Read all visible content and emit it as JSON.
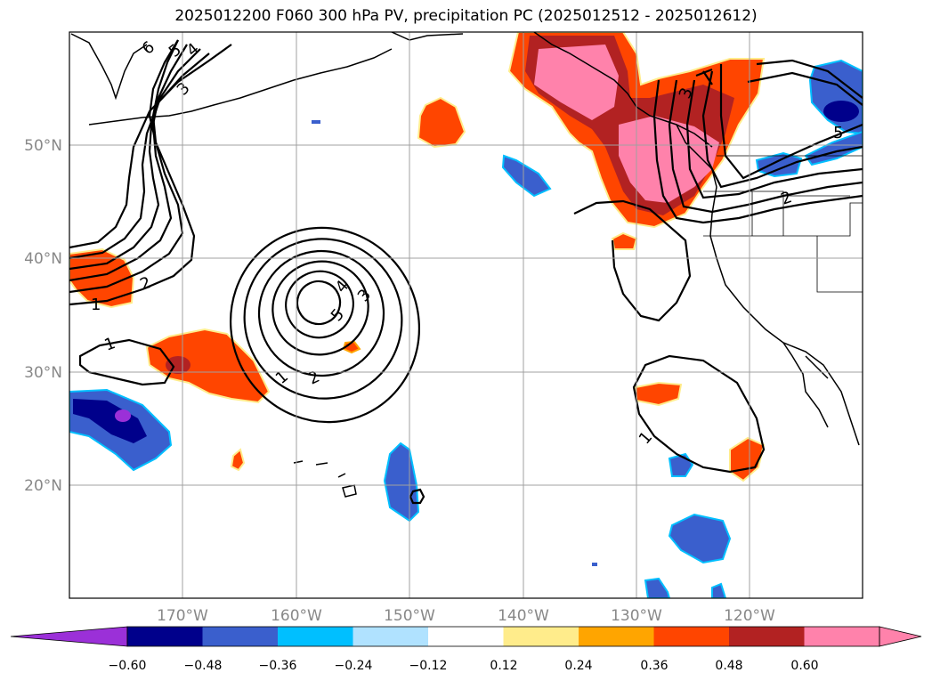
{
  "title": "2025012200 F060 300 hPa PV, precipitation PC (2025012512 - 2025012612)",
  "map": {
    "lat_ticks": [
      "50°N",
      "40°N",
      "30°N",
      "20°N"
    ],
    "lon_ticks": [
      "170°W",
      "160°W",
      "150°W",
      "140°W",
      "130°W",
      "120°W"
    ],
    "grid": true,
    "extent": {
      "lon": [
        -180,
        -110
      ],
      "lat": [
        10,
        60
      ]
    }
  },
  "contour_labels": [
    "6",
    "5",
    "4",
    "3",
    "2",
    "1",
    "1",
    "2",
    "3",
    "4",
    "5",
    "1",
    "3",
    "2",
    "1",
    "5"
  ],
  "colorbar": {
    "ticks": [
      "−0.60",
      "−0.48",
      "−0.36",
      "−0.24",
      "−0.12",
      "0.12",
      "0.24",
      "0.36",
      "0.48",
      "0.60"
    ],
    "colors": [
      "#9b30d8",
      "#00008b",
      "#3a5fcd",
      "#00bfff",
      "#b0e2ff",
      "#ffffff",
      "#ffec8b",
      "#ffa500",
      "#ff4500",
      "#b22222",
      "#ff82ab",
      "#ff82ab"
    ]
  }
}
